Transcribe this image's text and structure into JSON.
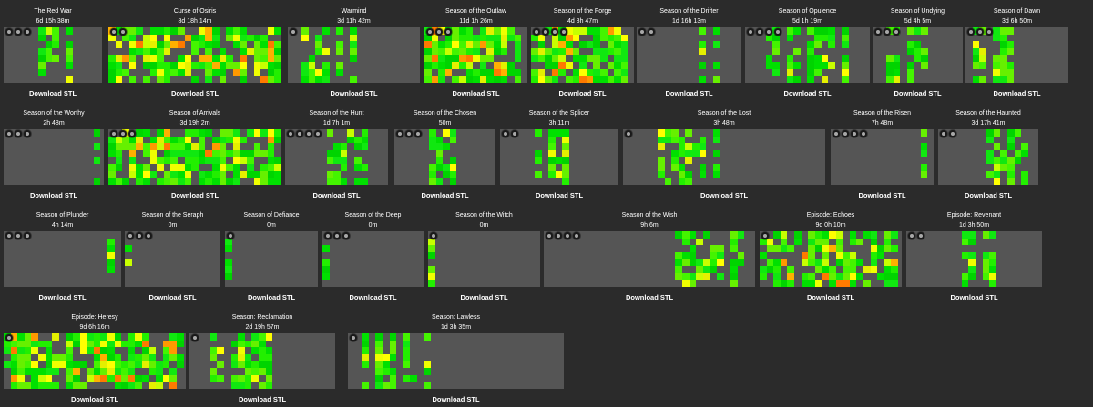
{
  "download_label": "Download STL",
  "palette": {
    "background": "#2b2b2b",
    "empty": "#555555",
    "low": "#00e000",
    "mid": "#ffff00",
    "high": "#ff6a00"
  },
  "seasons": [
    {
      "title": "The Red War",
      "time": "6d 15h 38m"
    },
    {
      "title": "Curse of Osiris",
      "time": "8d 18h 14m"
    },
    {
      "title": "Warmind",
      "time": "3d 11h 42m"
    },
    {
      "title": "Season of the Outlaw",
      "time": "11d 1h 26m"
    },
    {
      "title": "Season of the Forge",
      "time": "4d 8h 47m"
    },
    {
      "title": "Season of the Drifter",
      "time": "1d 16h 13m"
    },
    {
      "title": "Season of Opulence",
      "time": "5d 1h 19m"
    },
    {
      "title": "Season of Undying",
      "time": "5d 4h 5m"
    },
    {
      "title": "Season of Dawn",
      "time": "3d 6h 50m"
    },
    {
      "title": "Season of the Worthy",
      "time": "2h 48m"
    },
    {
      "title": "Season of Arrivals",
      "time": "3d 19h 2m"
    },
    {
      "title": "Season of the Hunt",
      "time": "1d 7h 1m"
    },
    {
      "title": "Season of the Chosen",
      "time": "50m"
    },
    {
      "title": "Season of the Splicer",
      "time": "3h 11m"
    },
    {
      "title": "Season of the Lost",
      "time": "3h 48m"
    },
    {
      "title": "Season of the Risen",
      "time": "7h 48m"
    },
    {
      "title": "Season of the Haunted",
      "time": "3d 17h 41m"
    },
    {
      "title": "Season of Plunder",
      "time": "4h 14m"
    },
    {
      "title": "Season of the Seraph",
      "time": "0m"
    },
    {
      "title": "Season of Defiance",
      "time": "0m"
    },
    {
      "title": "Season of the Deep",
      "time": "0m"
    },
    {
      "title": "Season of the Witch",
      "time": "0m"
    },
    {
      "title": "Season of the Wish",
      "time": "9h 6m"
    },
    {
      "title": "Episode: Echoes",
      "time": "9d 0h 10m"
    },
    {
      "title": "Episode: Revenant",
      "time": "1d 3h 50m"
    },
    {
      "title": "Episode: Heresy",
      "time": "9d 6h 16m"
    },
    {
      "title": "Season: Reclamation",
      "time": "2d 19h 57m"
    },
    {
      "title": "Season: Lawless",
      "time": "1d 3h 35m"
    }
  ]
}
